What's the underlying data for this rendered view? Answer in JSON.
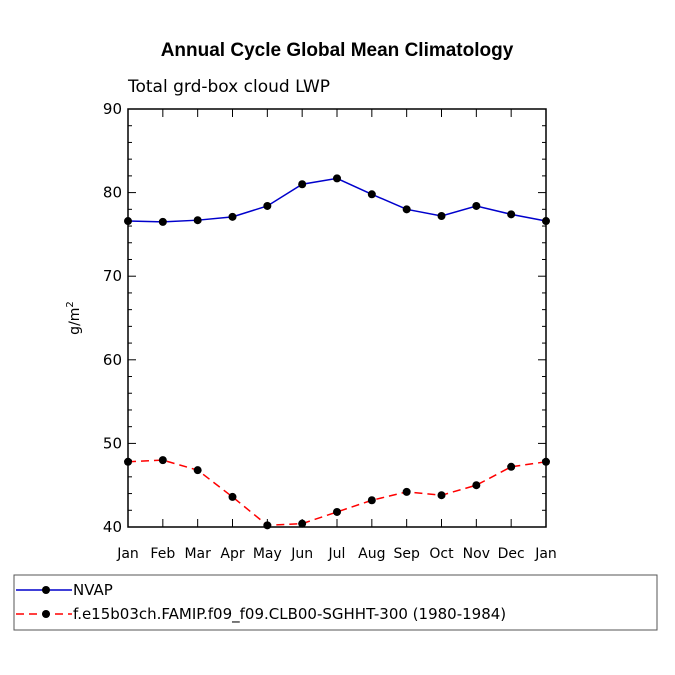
{
  "chart_data": {
    "type": "line",
    "title": "Annual Cycle Global Mean Climatology",
    "subtitle": "Total grd-box cloud LWP",
    "ylabel_base": "g/m",
    "ylabel_sup": "2",
    "xlabel": "",
    "ylim": [
      40,
      90
    ],
    "yticks": [
      40,
      50,
      60,
      70,
      80,
      90
    ],
    "yticklabels": [
      "40",
      "50",
      "60",
      "70",
      "80",
      "90"
    ],
    "categories": [
      "Jan",
      "Feb",
      "Mar",
      "Apr",
      "May",
      "Jun",
      "Jul",
      "Aug",
      "Sep",
      "Oct",
      "Nov",
      "Dec",
      "Jan"
    ],
    "series": [
      {
        "name": "NVAP",
        "color": "#0000cc",
        "dash": "solid",
        "values": [
          76.6,
          76.5,
          76.7,
          77.1,
          78.4,
          81.0,
          81.7,
          79.8,
          78.0,
          77.2,
          78.4,
          77.4,
          76.6
        ]
      },
      {
        "name": "f.e15b03ch.FAMIP.f09_f09.CLB00-SGHHT-300 (1980-1984)",
        "color": "#ff0000",
        "dash": "dashed",
        "values": [
          47.8,
          48.0,
          46.8,
          43.6,
          40.2,
          40.4,
          41.8,
          43.2,
          44.2,
          43.8,
          45.0,
          47.2,
          47.8
        ]
      }
    ],
    "legend_position": "bottom"
  }
}
